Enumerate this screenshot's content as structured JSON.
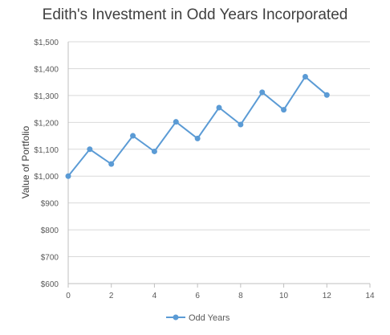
{
  "chart_data": {
    "type": "line",
    "title": "Edith's Investment in Odd Years Incorporated",
    "xlabel": "",
    "ylabel": "Value of Portfolio",
    "xlim": [
      0,
      14
    ],
    "ylim": [
      600,
      1500
    ],
    "x_ticks": [
      0,
      2,
      4,
      6,
      8,
      10,
      12,
      14
    ],
    "y_ticks": [
      600,
      700,
      800,
      900,
      1000,
      1100,
      1200,
      1300,
      1400,
      1500
    ],
    "y_tick_labels": [
      "$600",
      "$700",
      "$800",
      "$900",
      "$1,000",
      "$1,100",
      "$1,200",
      "$1,300",
      "$1,400",
      "$1,500"
    ],
    "grid": "horizontal",
    "legend": "bottom",
    "series": [
      {
        "name": "Odd Years",
        "color": "#5b9bd5",
        "x": [
          0,
          1,
          2,
          3,
          4,
          5,
          6,
          7,
          8,
          9,
          10,
          11,
          12
        ],
        "values": [
          1000,
          1100,
          1045,
          1150,
          1092,
          1202,
          1140,
          1255,
          1192,
          1312,
          1247,
          1370,
          1302
        ]
      }
    ]
  }
}
